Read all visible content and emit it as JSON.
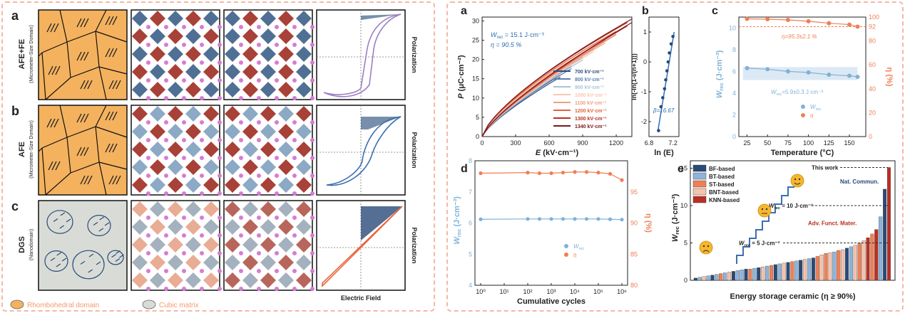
{
  "left": {
    "rows": [
      {
        "letter": "a",
        "label": "AFE+FE",
        "sub": "(Micrometer-Size Domain)"
      },
      {
        "letter": "b",
        "label": "AFE",
        "sub": "(Micrometer-Size Domain)"
      },
      {
        "letter": "c",
        "label": "DGS",
        "sub": "(Nanodomain)"
      }
    ],
    "polarization_label": "Polarization",
    "efield_label": "Electric Field",
    "legend": [
      {
        "label": "Rhombohedral domain",
        "color": "#f4b25f"
      },
      {
        "label": "Cubic matrix",
        "color": "#d9dcd6"
      }
    ]
  },
  "right": {
    "a": {
      "letter": "a",
      "xlabel": "E (kV·cm⁻¹)",
      "ylabel": "P (μC·cm⁻²)",
      "wrec": "W",
      "wrec_sub": "rec",
      "wrec_val": " = 15.1 J·cm⁻³",
      "eta": "η = 90.5 %",
      "xticks": [
        "0",
        "300",
        "600",
        "900",
        "1200"
      ],
      "yticks": [
        "0",
        "5",
        "10",
        "15",
        "20",
        "25",
        "30"
      ],
      "legend": [
        {
          "label": "700 kV·cm⁻¹",
          "color": "#2c4e7a"
        },
        {
          "label": "800 kV·cm⁻¹",
          "color": "#5b80b0"
        },
        {
          "label": "900 kV·cm⁻¹",
          "color": "#a8c2dc"
        },
        {
          "label": "1000 kV·cm⁻¹",
          "color": "#f7c7b0"
        },
        {
          "label": "1100 kV·cm⁻¹",
          "color": "#ef9e7e"
        },
        {
          "label": "1200 kV·cm⁻¹",
          "color": "#e0643d"
        },
        {
          "label": "1300 kV·cm⁻¹",
          "color": "#b83023"
        },
        {
          "label": "1340 kV·cm⁻¹",
          "color": "#7d1818"
        }
      ]
    },
    "b": {
      "letter": "b",
      "ylabel": "ln(-ln(1-i/(n+1)))",
      "xlabel": "ln (E)",
      "beta": "β=16.67",
      "xticks": [
        "6.8",
        "7.2"
      ],
      "yticks": [
        "1",
        "0",
        "-1",
        "-2"
      ]
    },
    "c": {
      "letter": "c",
      "xlabel": "Temperature (°C)",
      "ylabel_left": "W",
      "ylabel_left_sub": "rec",
      "ylabel_left_unit": " (J·cm⁻³)",
      "ylabel_right": "η (%)",
      "eta_note": "η=95.3±2.1 %",
      "w_note": "W",
      "w_note_sub": "rec",
      "w_note_val": "=5.9±0.3 J·cm⁻³",
      "xticks": [
        "25",
        "50",
        "75",
        "100",
        "125",
        "150"
      ],
      "yticks_left": [
        "0",
        "2",
        "4",
        "6",
        "8",
        "10"
      ],
      "yticks_right": [
        "0",
        "20",
        "40",
        "60",
        "80",
        "92",
        "100"
      ],
      "legend": [
        {
          "label": "W",
          "sub": "rec"
        },
        {
          "label": "η"
        }
      ]
    },
    "d": {
      "letter": "d",
      "xlabel": "Cumulative cycles",
      "ylabel_left": "W",
      "ylabel_left_sub": "rec",
      "ylabel_left_unit": " (J·cm⁻³)",
      "ylabel_right": "η (%)",
      "xticks": [
        "10⁰",
        "10¹",
        "10²",
        "10³",
        "10⁴",
        "10⁵",
        "10⁶"
      ],
      "yticks_left": [
        "4",
        "5",
        "6",
        "7",
        "8"
      ],
      "yticks_right": [
        "80",
        "85",
        "90",
        "95"
      ],
      "legend": [
        {
          "label": "W",
          "sub": "rec"
        },
        {
          "label": "η"
        }
      ]
    },
    "e": {
      "letter": "e",
      "xlabel": "Energy storage ceramic (η ≥ 90%)",
      "ylabel": "W",
      "ylabel_sub": "rec",
      "ylabel_unit": " (J·cm⁻³)",
      "yticks": [
        "0",
        "5",
        "10",
        "15"
      ],
      "legend": [
        {
          "label": "BF-based",
          "color": "#2a4a78"
        },
        {
          "label": "BT-based",
          "color": "#8fb4da"
        },
        {
          "label": "ST-based",
          "color": "#ef7f54"
        },
        {
          "label": "BNT-based",
          "color": "#f6c3ad"
        },
        {
          "label": "KNN-based",
          "color": "#b83023"
        }
      ],
      "this_work": "This work",
      "nat": "Nat. Commun.",
      "adv": "Adv. Funct. Mater.",
      "level10": "W",
      "level10_sub": "rec",
      "level10_val": " = 10 J·cm⁻³",
      "level5": "W",
      "level5_sub": "rec",
      "level5_val": " = 5 J·cm⁻³"
    }
  },
  "chart_data": [
    {
      "type": "line",
      "panel": "a",
      "x_range": [
        0,
        1340
      ],
      "y_range": [
        0,
        31
      ],
      "series": [
        {
          "name": "700 kV·cm⁻¹",
          "emax": 700
        },
        {
          "name": "800 kV·cm⁻¹",
          "emax": 800
        },
        {
          "name": "900 kV·cm⁻¹",
          "emax": 900
        },
        {
          "name": "1000 kV·cm⁻¹",
          "emax": 1000
        },
        {
          "name": "1100 kV·cm⁻¹",
          "emax": 1100
        },
        {
          "name": "1200 kV·cm⁻¹",
          "emax": 1200
        },
        {
          "name": "1300 kV·cm⁻¹",
          "emax": 1300
        },
        {
          "name": "1340 kV·cm⁻¹",
          "emax": 1340
        }
      ]
    },
    {
      "type": "scatter",
      "panel": "b",
      "xlim": [
        6.8,
        7.3
      ],
      "ylim": [
        -2.5,
        1.5
      ],
      "x": [
        6.96,
        7.0,
        7.03,
        7.06,
        7.08,
        7.1,
        7.12,
        7.14,
        7.17,
        7.2
      ],
      "y": [
        -2.3,
        -1.5,
        -1.2,
        -0.9,
        -0.6,
        -0.3,
        0.0,
        0.3,
        0.6,
        0.85
      ]
    },
    {
      "type": "line",
      "panel": "c",
      "x": [
        25,
        50,
        75,
        100,
        125,
        150,
        160
      ],
      "wrec": [
        6.3,
        6.2,
        6.0,
        5.9,
        5.7,
        5.6,
        5.5
      ],
      "eta": [
        98.5,
        98.2,
        97.6,
        96.5,
        94.9,
        93.7,
        92.0
      ]
    },
    {
      "type": "line",
      "panel": "d",
      "x_log": [
        0,
        2,
        2.5,
        3,
        3.5,
        4,
        4.5,
        5,
        5.5,
        6
      ],
      "wrec": [
        6.12,
        6.13,
        6.13,
        6.13,
        6.13,
        6.13,
        6.13,
        6.13,
        6.12,
        6.11
      ],
      "eta": [
        98.0,
        98.1,
        98.0,
        98.0,
        98.1,
        98.2,
        98.2,
        98.1,
        97.9,
        96.9
      ]
    },
    {
      "type": "bar",
      "panel": "e",
      "ylim": [
        0,
        16
      ],
      "values": [
        0.3,
        0.4,
        0.5,
        0.6,
        0.7,
        0.8,
        0.9,
        1.0,
        1.1,
        1.2,
        1.3,
        1.4,
        1.5,
        1.5,
        1.6,
        1.7,
        1.8,
        1.9,
        2.0,
        2.1,
        2.2,
        2.3,
        2.4,
        2.5,
        2.6,
        2.7,
        2.8,
        2.9,
        3.0,
        3.2,
        3.4,
        3.6,
        3.7,
        3.8,
        4.0,
        4.1,
        4.3,
        4.5,
        4.7,
        5.0,
        5.3,
        5.7,
        6.2,
        6.8,
        8.5,
        12.2,
        15.1
      ],
      "groups": [
        "BF",
        "BT",
        "BNT",
        "BT",
        "BF",
        "BT",
        "ST",
        "BT",
        "BNT",
        "BF",
        "BT",
        "BT",
        "BF",
        "ST",
        "BT",
        "BF",
        "BNT",
        "BT",
        "ST",
        "BF",
        "BT",
        "BNT",
        "BF",
        "ST",
        "BT",
        "BF",
        "BNT",
        "BT",
        "BF",
        "ST",
        "BNT",
        "ST",
        "BNT",
        "BT",
        "ST",
        "BNT",
        "BF",
        "BT",
        "BNT",
        "ST",
        "BNT",
        "KNN",
        "ST",
        "KNN",
        "BT",
        "BF",
        "KNN"
      ]
    }
  ]
}
